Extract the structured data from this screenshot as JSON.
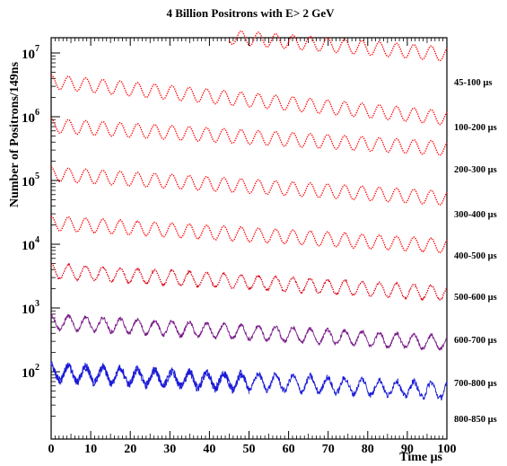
{
  "chart_data": {
    "type": "line",
    "title": "4 Billion Positrons with E> 2  GeV",
    "xlabel": "Time μs",
    "ylabel": "Number of Positrons/149ns",
    "xlim": [
      0,
      100
    ],
    "x_ticks": [
      "0",
      "10",
      "20",
      "30",
      "40",
      "50",
      "60",
      "70",
      "80",
      "90",
      "100"
    ],
    "y_scale": "log",
    "y_ticks": [
      {
        "base": "10",
        "exp": "2"
      },
      {
        "base": "10",
        "exp": "3"
      },
      {
        "base": "10",
        "exp": "4"
      },
      {
        "base": "10",
        "exp": "5"
      },
      {
        "base": "10",
        "exp": "6"
      },
      {
        "base": "10",
        "exp": "7"
      }
    ],
    "grid": false,
    "legend": "none",
    "oscillation_period_us": 4.365,
    "series": [
      {
        "window": "45-100 μs",
        "color": "#ff0000",
        "style": "dotted",
        "x_range": [
          45,
          100
        ],
        "start_log10": 7.25,
        "end_log10": 6.98,
        "amplitude_log10": 0.11,
        "noise": 0
      },
      {
        "window": "100-200 μs",
        "color": "#ff0000",
        "style": "dotted",
        "x_range": [
          0,
          100
        ],
        "start_log10": 6.55,
        "end_log10": 5.98,
        "amplitude_log10": 0.11,
        "noise": 0
      },
      {
        "window": "200-300 μs",
        "color": "#ff0000",
        "style": "dotted",
        "x_range": [
          0,
          100
        ],
        "start_log10": 5.86,
        "end_log10": 5.5,
        "amplitude_log10": 0.11,
        "noise": 0
      },
      {
        "window": "300-400 μs",
        "color": "#ff0000",
        "style": "dotted",
        "x_range": [
          0,
          100
        ],
        "start_log10": 5.1,
        "end_log10": 4.72,
        "amplitude_log10": 0.11,
        "noise": 0
      },
      {
        "window": "400-500 μs",
        "color": "#ff0000",
        "style": "dotted",
        "x_range": [
          0,
          100
        ],
        "start_log10": 4.33,
        "end_log10": 3.97,
        "amplitude_log10": 0.11,
        "noise": 0.005
      },
      {
        "window": "500-600 μs",
        "color": "#dd0011",
        "style": "dotted",
        "x_range": [
          0,
          100
        ],
        "start_log10": 3.58,
        "end_log10": 3.23,
        "amplitude_log10": 0.11,
        "noise": 0.012
      },
      {
        "window": "600-700 μs",
        "color": "#7a1c8a",
        "style": "solid",
        "x_range": [
          0,
          100
        ],
        "start_log10": 2.78,
        "end_log10": 2.45,
        "amplitude_log10": 0.11,
        "noise": 0.03
      },
      {
        "window": "700-800 μs",
        "color": "#1a1ad8",
        "style": "solid",
        "x_range": [
          0,
          100
        ],
        "start_log10": 2.0,
        "end_log10": 1.7,
        "amplitude_log10": 0.12,
        "noise": 0.05
      },
      {
        "window": "800-850 μs",
        "color": "#1a1ad8",
        "style": "solid",
        "x_range": [
          0,
          50
        ],
        "start_log10": 1.98,
        "end_log10": 1.82,
        "amplitude_log10": 0.12,
        "noise": 0.06
      }
    ]
  }
}
